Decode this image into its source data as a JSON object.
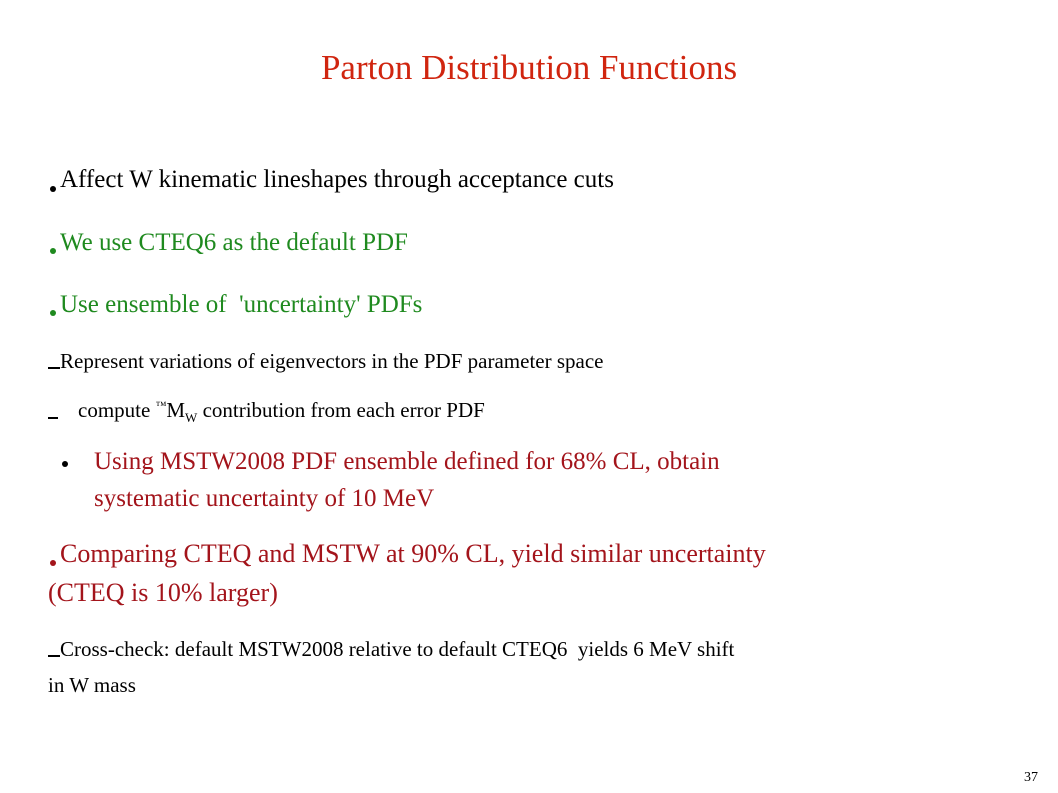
{
  "slide": {
    "title": "Parton Distribution Functions",
    "items": [
      {
        "lines": [
          "Affect W kinematic lineshapes through acceptance cuts"
        ]
      },
      {
        "lines": [
          "We use CTEQ6 as the default PDF"
        ]
      },
      {
        "lines": [
          "Use ensemble of  'uncertainty' PDFs"
        ]
      },
      {
        "lines": [
          "Represent variations of eigenvectors in the PDF parameter space"
        ]
      },
      {
        "parts": [
          "compute ",
          "™",
          "M",
          "W",
          " contribution from each error PDF"
        ]
      },
      {
        "lines": [
          "Using MSTW2008 PDF ensemble defined for 68% CL, obtain",
          "systematic uncertainty of 10 MeV"
        ]
      },
      {
        "lines": [
          "Comparing CTEQ and MSTW at 90% CL, yield similar uncertainty",
          "(CTEQ is 10% larger)"
        ]
      },
      {
        "lines": [
          "Cross-check: default MSTW2008 relative to default CTEQ6  yields 6 MeV shift",
          "in W mass"
        ]
      }
    ],
    "page_number": "37"
  }
}
